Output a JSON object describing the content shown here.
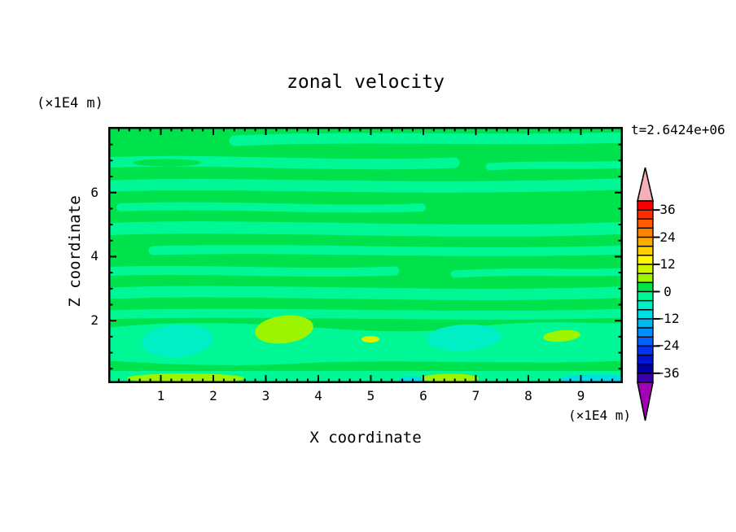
{
  "figure": {
    "title": "zonal velocity",
    "time_annotation": "t=2.6424e+06"
  },
  "axes": {
    "x": {
      "label": "X coordinate",
      "unit": "(×1E4 m)",
      "min": 0,
      "max": 9.8,
      "major_tick_step": 1,
      "minor_tick_step": 0.2,
      "tick_labels": [
        "1",
        "2",
        "3",
        "4",
        "5",
        "6",
        "7",
        "8",
        "9"
      ]
    },
    "z": {
      "label": "Z coordinate",
      "unit": "(×1E4 m)",
      "min": 0,
      "max": 8,
      "major_ticks": [
        2,
        4,
        6
      ],
      "minor_tick_step": 0.5,
      "tick_labels": [
        "2",
        "4",
        "6"
      ]
    }
  },
  "colorbar": {
    "tick_labels": [
      "36",
      "24",
      "12",
      "0",
      "−12",
      "−24",
      "−36"
    ],
    "level_min": -40,
    "level_max": 40,
    "level_step": 4,
    "box_colors_top_to_bottom": [
      "#F40000",
      "#FF2D00",
      "#FF5C00",
      "#FF8400",
      "#FFAC00",
      "#FFD200",
      "#FFF600",
      "#D2F500",
      "#9EF400",
      "#00E24B",
      "#00F796",
      "#00EFC4",
      "#00DDE8",
      "#00B7F2",
      "#0090FF",
      "#0063FF",
      "#0036F0",
      "#0012D2",
      "#0000A8",
      "#3A00A8"
    ],
    "over_color": "#F7AEB9",
    "under_color": "#A300B8"
  },
  "palette": {
    "background": "#FFFFFF",
    "frame": "#000000",
    "text": "#000000",
    "green": "#00E24B",
    "mint": "#00F796",
    "turquoise": "#00EFC4",
    "cyan": "#00DDE8",
    "chartreuse": "#9EF400",
    "yellow_green": "#E0EE00"
  },
  "chart_data": {
    "type": "heatmap",
    "title": "zonal velocity",
    "xlabel": "X coordinate (×1E4 m)",
    "ylabel": "Z coordinate (×1E4 m)",
    "x_range": [
      0,
      9.8
    ],
    "z_range": [
      0,
      8
    ],
    "time_annotation": "t=2.6424e+06",
    "colorbar_levels": {
      "min": -40,
      "max": 40,
      "step": 4,
      "labeled_levels": [
        36,
        24,
        12,
        0,
        -12,
        -24,
        -36
      ]
    },
    "field_summary": "Filled-contour zonal velocity field; almost everywhere within ±4 m/s, shown as alternating wavy horizontal bands of green (0..+4) and spring green (−4..0).",
    "features": [
      {
        "value_band": "-8..-4 (turquoise)",
        "location": "near-bottom blob x≈0.7–2.0, z≈0.8–1.9"
      },
      {
        "value_band": "-8..-4 (turquoise)",
        "location": "near-bottom blob x≈6.1–7.4, z≈0.9–1.8"
      },
      {
        "value_band": "-12..-8 (cyan)",
        "location": "bottom boundary strip x≈5.6–6.1 and x≈8.6–9.8"
      },
      {
        "value_band": "+4..+8 (yellow-green)",
        "location": "near-bottom patch x≈2.9–3.9, z≈1.0–2.0 and bottom strip x≈6.0–7.0 and x≈0.3–2.6"
      },
      {
        "value_band": "+8..+12 (yellow)",
        "location": "tiny sliver x≈3.0, z≈1.3"
      }
    ]
  }
}
